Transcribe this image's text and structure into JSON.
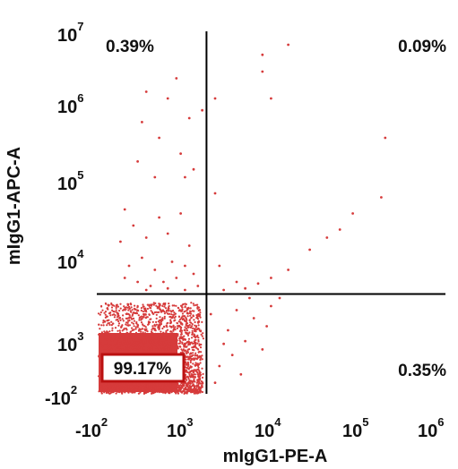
{
  "chart_data": {
    "type": "scatter",
    "title": "",
    "xlabel": "mIgG1-PE-A",
    "ylabel": "mIgG1-APC-A",
    "x_ticks": [
      {
        "base": "-10",
        "exp": "2"
      },
      {
        "base": "10",
        "exp": "3"
      },
      {
        "base": "10",
        "exp": "4"
      },
      {
        "base": "10",
        "exp": "5"
      },
      {
        "base": "10",
        "exp": "6"
      }
    ],
    "y_ticks": [
      {
        "base": "-10",
        "exp": "2"
      },
      {
        "base": "10",
        "exp": "3"
      },
      {
        "base": "10",
        "exp": "4"
      },
      {
        "base": "10",
        "exp": "5"
      },
      {
        "base": "10",
        "exp": "6"
      },
      {
        "base": "10",
        "exp": "7"
      }
    ],
    "quadrants": {
      "upper_left": "0.39%",
      "upper_right": "0.09%",
      "lower_left": "99.17%",
      "lower_right": "0.35%"
    },
    "gate": {
      "x": 3.15,
      "y": 3.55
    },
    "point_color": "#d63b3b",
    "points": [
      [
        3.9,
        6.0
      ],
      [
        4.1,
        6.8
      ],
      [
        3.8,
        6.65
      ],
      [
        3.8,
        6.4
      ],
      [
        3.25,
        6.0
      ],
      [
        3.1,
        5.85
      ],
      [
        2.95,
        5.75
      ],
      [
        2.7,
        6.0
      ],
      [
        2.8,
        6.3
      ],
      [
        2.45,
        6.1
      ],
      [
        2.4,
        5.7
      ],
      [
        2.6,
        5.5
      ],
      [
        2.85,
        5.3
      ],
      [
        2.9,
        5.0
      ],
      [
        3.0,
        5.1
      ],
      [
        2.55,
        5.0
      ],
      [
        2.35,
        5.2
      ],
      [
        2.2,
        4.6
      ],
      [
        2.3,
        4.4
      ],
      [
        2.45,
        4.25
      ],
      [
        2.6,
        4.5
      ],
      [
        2.7,
        4.3
      ],
      [
        2.85,
        4.55
      ],
      [
        2.95,
        4.15
      ],
      [
        2.4,
        4.0
      ],
      [
        2.25,
        3.9
      ],
      [
        2.55,
        3.85
      ],
      [
        2.75,
        3.95
      ],
      [
        2.9,
        3.9
      ],
      [
        3.0,
        3.8
      ],
      [
        2.2,
        3.75
      ],
      [
        2.35,
        3.7
      ],
      [
        2.5,
        3.65
      ],
      [
        2.65,
        3.7
      ],
      [
        2.8,
        3.75
      ],
      [
        3.05,
        3.65
      ],
      [
        2.45,
        3.6
      ],
      [
        2.7,
        3.62
      ],
      [
        2.9,
        3.6
      ],
      [
        2.15,
        4.2
      ],
      [
        3.25,
        4.8
      ],
      [
        3.3,
        3.9
      ],
      [
        3.5,
        3.7
      ],
      [
        3.6,
        3.62
      ],
      [
        3.35,
        3.6
      ],
      [
        3.75,
        3.68
      ],
      [
        3.9,
        3.75
      ],
      [
        4.1,
        3.85
      ],
      [
        4.35,
        4.1
      ],
      [
        4.55,
        4.25
      ],
      [
        4.7,
        4.35
      ],
      [
        4.85,
        4.55
      ],
      [
        5.25,
        5.5
      ],
      [
        5.2,
        4.75
      ],
      [
        3.5,
        3.35
      ],
      [
        3.7,
        3.25
      ],
      [
        3.9,
        3.4
      ],
      [
        3.6,
        2.95
      ],
      [
        3.8,
        2.8
      ],
      [
        3.45,
        2.7
      ],
      [
        3.55,
        2.35
      ],
      [
        3.3,
        2.5
      ],
      [
        3.25,
        2.2
      ],
      [
        3.4,
        3.1
      ],
      [
        3.65,
        3.5
      ],
      [
        3.35,
        2.9
      ],
      [
        3.2,
        3.3
      ],
      [
        4.0,
        3.5
      ],
      [
        3.85,
        3.15
      ]
    ]
  }
}
